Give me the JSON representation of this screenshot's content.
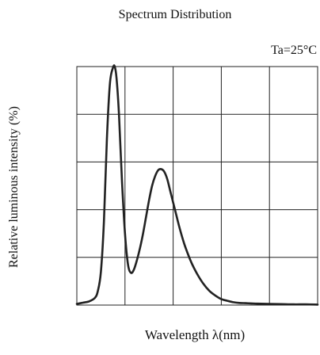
{
  "chart_data": {
    "type": "line",
    "title": "Spectrum Distribution",
    "annotation": "Ta=25°C",
    "xlabel": "Wavelength  λ(nm)",
    "ylabel": "Relative luminous intensity (%)",
    "xlim": [
      380,
      780
    ],
    "ylim": [
      0,
      100
    ],
    "grid": true,
    "x_divisions": 5,
    "y_divisions": 5,
    "tick_labels_shown": false,
    "colors": {
      "curve": "#222222",
      "grid": "#222222",
      "text": "#111111"
    },
    "series": [
      {
        "x": [
          380,
          390,
          400,
          410,
          415,
          420,
          425,
          430,
          435,
          440,
          443,
          446,
          450,
          455,
          460,
          465,
          470,
          475,
          480,
          485,
          490,
          495,
          500,
          505,
          510,
          515,
          520,
          525,
          530,
          535,
          540,
          545,
          550,
          555,
          560,
          570,
          580,
          590,
          600,
          610,
          620,
          630,
          640,
          650,
          660,
          670,
          680,
          700,
          720,
          740,
          760,
          780
        ],
        "values": [
          0.5,
          1,
          1.5,
          3,
          6,
          14,
          35,
          70,
          93,
          99.5,
          100,
          95,
          80,
          52,
          30,
          17,
          13.5,
          15,
          19,
          24,
          30,
          37,
          44,
          50,
          54,
          56.5,
          57,
          56,
          53,
          48,
          43,
          38,
          33,
          28.5,
          24.5,
          18,
          13,
          9,
          6,
          4,
          2.5,
          1.8,
          1.2,
          0.9,
          0.8,
          0.7,
          0.6,
          0.5,
          0.4,
          0.3,
          0.3,
          0.2
        ]
      }
    ]
  }
}
